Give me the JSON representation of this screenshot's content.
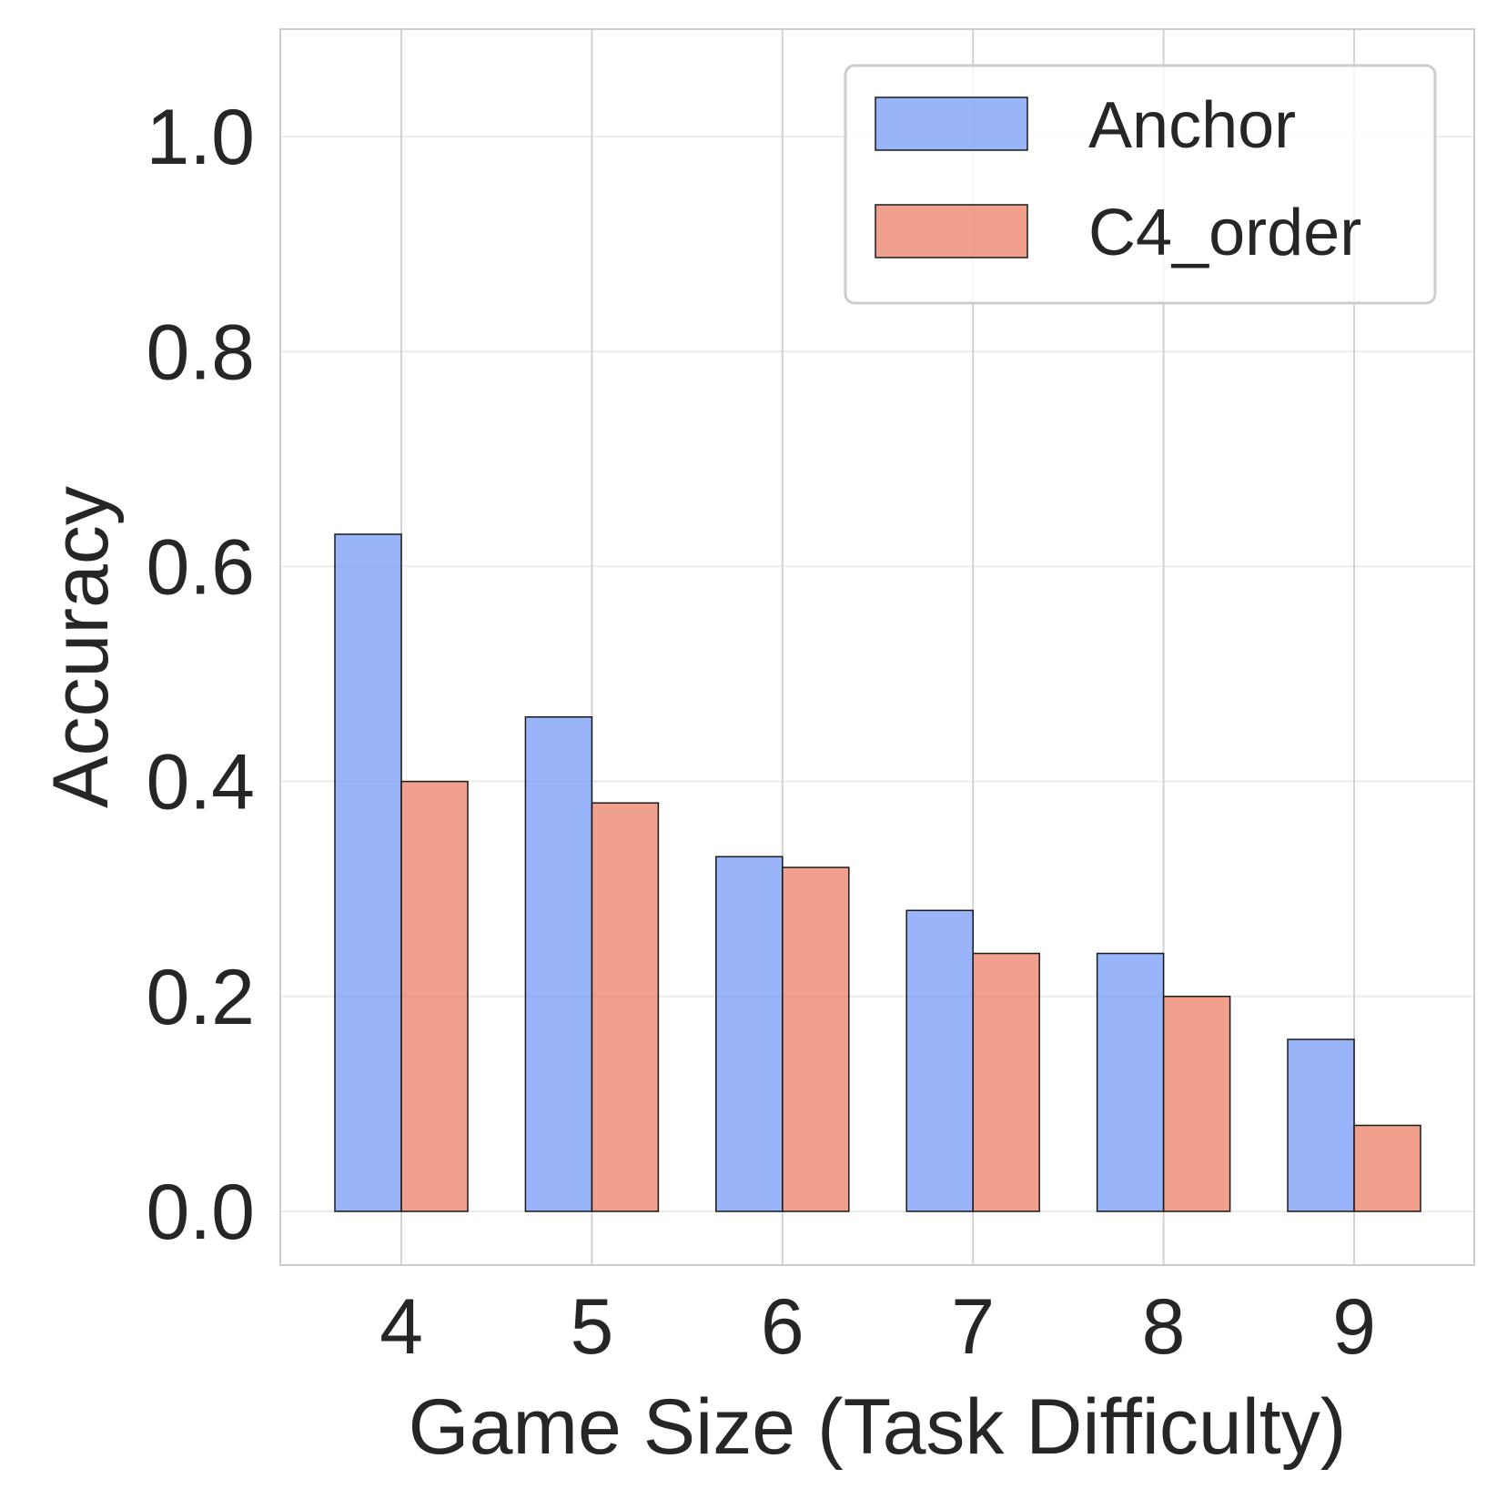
{
  "chart_data": {
    "type": "bar",
    "title": "",
    "xlabel": "Game Size (Task Difficulty)",
    "ylabel": "Accuracy",
    "categories": [
      "4",
      "5",
      "6",
      "7",
      "8",
      "9"
    ],
    "series": [
      {
        "name": "Anchor",
        "color": "#6d94f7",
        "values": [
          0.63,
          0.46,
          0.33,
          0.28,
          0.24,
          0.16
        ]
      },
      {
        "name": "C4_order",
        "color": "#e9775b",
        "values": [
          0.4,
          0.38,
          0.32,
          0.24,
          0.2,
          0.08
        ]
      }
    ],
    "ylim": [
      -0.05,
      1.1
    ],
    "yticks": [
      0.0,
      0.2,
      0.4,
      0.6,
      0.8,
      1.0
    ],
    "ytick_labels": [
      "0.0",
      "0.2",
      "0.4",
      "0.6",
      "0.8",
      "1.0"
    ],
    "grid": true,
    "legend_position": "top-right"
  }
}
